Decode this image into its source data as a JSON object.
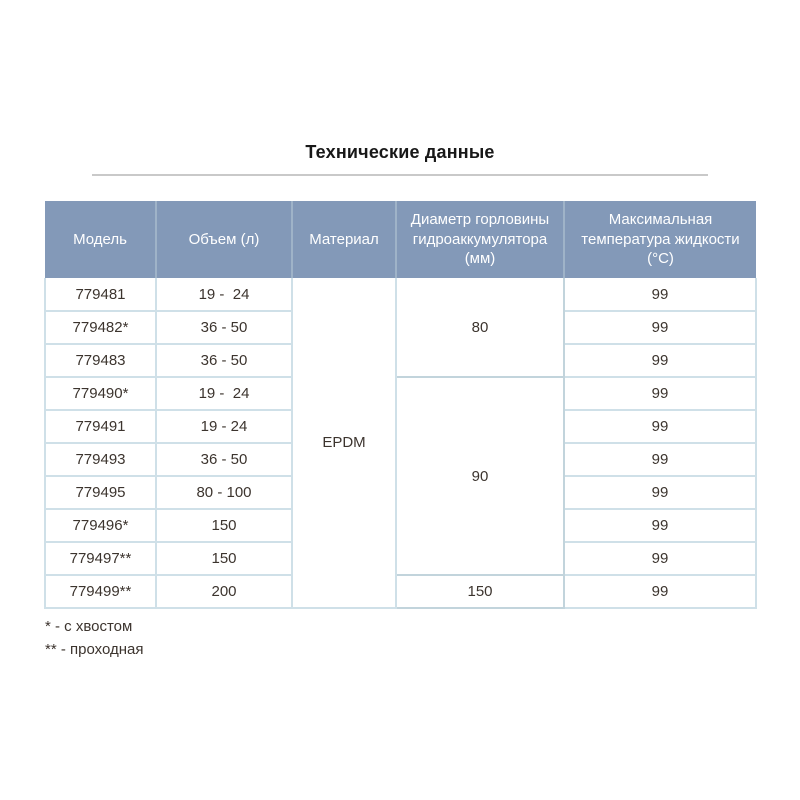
{
  "page": {
    "title": "Технические данные"
  },
  "table": {
    "headers": [
      "Модель",
      "Объем (л)",
      "Материал",
      "Диаметр горловины гидроаккумулятора (мм)",
      "Максимальная температура жидкости (°С)"
    ],
    "material": "EPDM",
    "diameters": [
      "80",
      "90",
      "150"
    ],
    "rows": [
      {
        "model": "779481",
        "volume": "19 -  24",
        "temp": "99"
      },
      {
        "model": "779482*",
        "volume": "36 - 50",
        "temp": "99"
      },
      {
        "model": "779483",
        "volume": "36 - 50",
        "temp": "99"
      },
      {
        "model": "779490*",
        "volume": "19 -  24",
        "temp": "99"
      },
      {
        "model": "779491",
        "volume": "19 - 24",
        "temp": "99"
      },
      {
        "model": "779493",
        "volume": "36 - 50",
        "temp": "99"
      },
      {
        "model": "779495",
        "volume": "80 - 100",
        "temp": "99"
      },
      {
        "model": "779496*",
        "volume": "150",
        "temp": "99"
      },
      {
        "model": "779497**",
        "volume": "150",
        "temp": "99"
      },
      {
        "model": "779499**",
        "volume": "200",
        "temp": "99"
      }
    ]
  },
  "footnotes": [
    "* - с хвостом",
    "** - проходная"
  ],
  "colors": {
    "header_bg": "#8399b8",
    "header_divider": "#9fb3c8",
    "body_border": "#cfe0e8",
    "group_border": "#c2d4dc",
    "text": "#3c342e",
    "header_text": "#ffffff",
    "divider_line": "#c9c9c9"
  }
}
